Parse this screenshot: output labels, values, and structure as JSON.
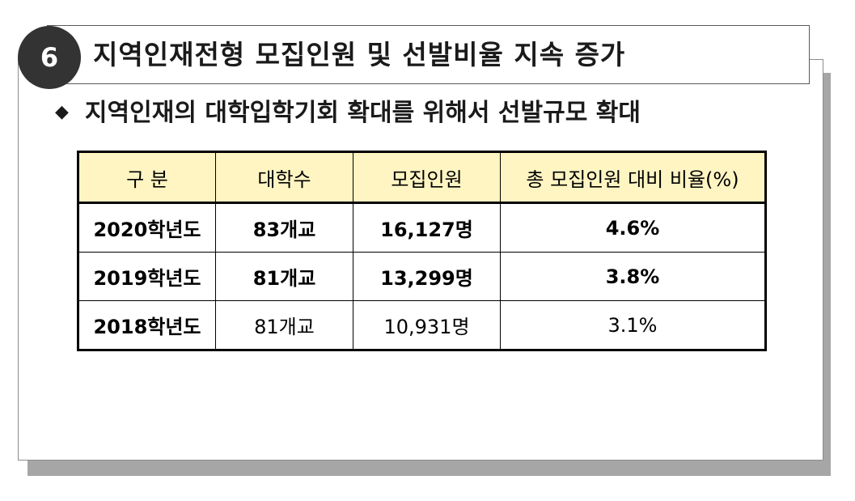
{
  "header": {
    "number": "6",
    "title": "지역인재전형 모집인원 및 선발비율 지속 증가"
  },
  "subtitle": {
    "bullet": "◆",
    "text": "지역인재의 대학입학기회 확대를 위해서 선발규모 확대"
  },
  "table": {
    "headers": [
      "구 분",
      "대학수",
      "모집인원",
      "총 모집인원 대비 비율(%)"
    ],
    "rows": [
      [
        "2020학년도",
        "83개교",
        "16,127명",
        "4.6%"
      ],
      [
        "2019학년도",
        "81개교",
        "13,299명",
        "3.8%"
      ],
      [
        "2018학년도",
        "81개교",
        "10,931명",
        "3.1%"
      ]
    ]
  },
  "colors": {
    "header_fill": "#fff5c2",
    "badge_fill": "#333333",
    "shadow": "#a6a6a6"
  }
}
